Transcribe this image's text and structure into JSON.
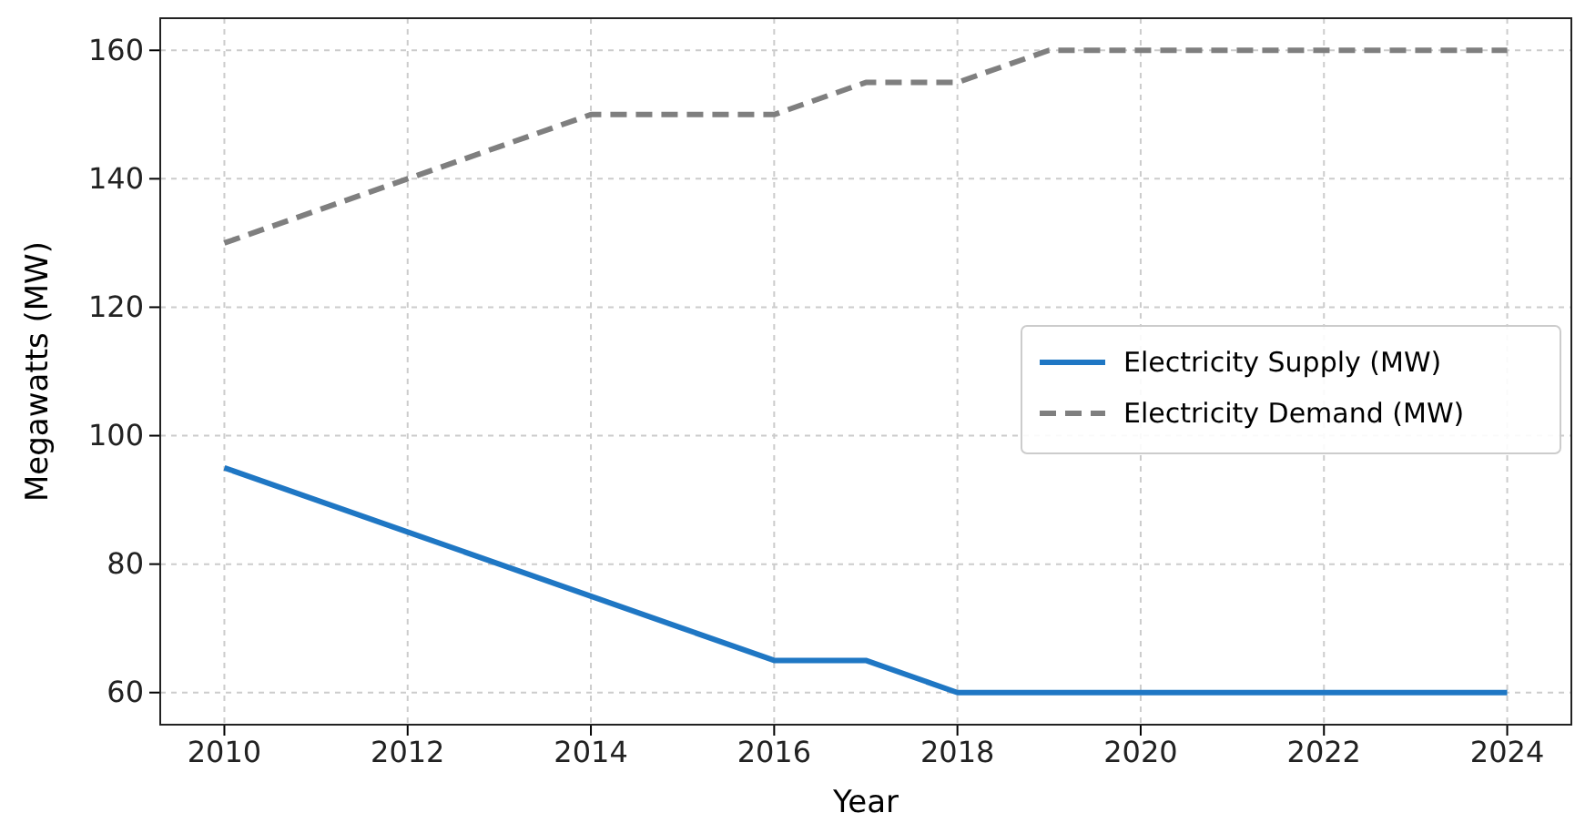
{
  "chart_data": {
    "type": "line",
    "xlabel": "Year",
    "ylabel": "Megawatts (MW)",
    "x": [
      2010,
      2011,
      2012,
      2013,
      2014,
      2015,
      2016,
      2017,
      2018,
      2019,
      2020,
      2021,
      2022,
      2023,
      2024
    ],
    "series": [
      {
        "name": "Electricity Supply (MW)",
        "color": "#1f77c4",
        "line_style": "solid",
        "values": [
          95,
          90,
          85,
          80,
          75,
          70,
          65,
          65,
          60,
          60,
          60,
          60,
          60,
          60,
          60
        ]
      },
      {
        "name": "Electricity Demand (MW)",
        "color": "#7f7f7f",
        "line_style": "dashed",
        "values": [
          130,
          135,
          140,
          145,
          150,
          150,
          150,
          155,
          155,
          160,
          160,
          160,
          160,
          160,
          160
        ]
      }
    ],
    "xlim": [
      2009.3,
      2024.7
    ],
    "ylim": [
      55,
      165
    ],
    "xticks": [
      2010,
      2012,
      2014,
      2016,
      2018,
      2020,
      2022,
      2024
    ],
    "yticks": [
      60,
      80,
      100,
      120,
      140,
      160
    ],
    "grid": true,
    "legend": "right"
  }
}
